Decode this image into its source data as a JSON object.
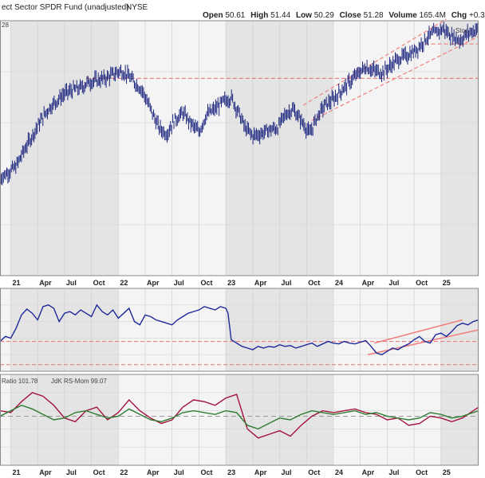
{
  "header": {
    "title": "ect Sector SPDR Fund (unadjusted)",
    "exchange": "NYSE",
    "quote": [
      {
        "label": "Open",
        "value": "50.61"
      },
      {
        "label": "High",
        "value": "51.44"
      },
      {
        "label": "Low",
        "value": "50.29"
      },
      {
        "label": "Close",
        "value": "51.28"
      },
      {
        "label": "Volume",
        "value": "165.4M"
      },
      {
        "label": "Chg",
        "value": "+0.3"
      }
    ],
    "top_left_value": "28",
    "watermark": "Stoc"
  },
  "colors": {
    "price": "#1a237e",
    "rs_line": "#1f2a9a",
    "rs_ratio": "#a3143c",
    "rs_momentum": "#2e7d32",
    "guide": "#f08080",
    "band_year": "#e4e4e4",
    "band_alt": "#f4f4f4"
  },
  "chart_data": [
    {
      "type": "line",
      "style": "ohlc-bars",
      "title": "ect Sector SPDR Fund (unadjusted)",
      "x_unit": "year-fraction",
      "x_range": [
        2020.9,
        2025.35
      ],
      "x_tick_labels": [
        "21",
        "Apr",
        "Jul",
        "Oct",
        "22",
        "Apr",
        "Jul",
        "Oct",
        "23",
        "Apr",
        "Jul",
        "Oct",
        "24",
        "Apr",
        "Jul",
        "Oct",
        "25"
      ],
      "x_tick_positions": [
        2021.0,
        2021.25,
        2021.5,
        2021.75,
        2022.0,
        2022.25,
        2022.5,
        2022.75,
        2023.0,
        2023.25,
        2023.5,
        2023.75,
        2024.0,
        2024.25,
        2024.5,
        2024.75,
        2025.0
      ],
      "y_range": [
        0,
        100
      ],
      "series": [
        {
          "x": [
            2020.9,
            2020.98,
            2021.05,
            2021.12,
            2021.2,
            2021.28,
            2021.35,
            2021.42,
            2021.5,
            2021.58,
            2021.65,
            2021.72,
            2021.8,
            2021.88,
            2021.95,
            2022.02,
            2022.08,
            2022.15,
            2022.22,
            2022.3,
            2022.38,
            2022.45,
            2022.52,
            2022.6,
            2022.68,
            2022.75,
            2022.82,
            2022.9,
            2022.98,
            2023.05,
            2023.12,
            2023.18,
            2023.25,
            2023.32,
            2023.4,
            2023.48,
            2023.55,
            2023.62,
            2023.7,
            2023.78,
            2023.85,
            2023.92,
            2024.0,
            2024.08,
            2024.15,
            2024.22,
            2024.3,
            2024.38,
            2024.45,
            2024.52,
            2024.6,
            2024.68,
            2024.75,
            2024.82,
            2024.88,
            2024.95,
            2025.02,
            2025.1,
            2025.18,
            2025.26,
            2025.35
          ],
          "y": [
            22,
            25,
            28,
            36,
            44,
            52,
            58,
            62,
            66,
            68,
            69,
            72,
            73,
            74,
            76,
            78,
            76,
            72,
            68,
            58,
            48,
            45,
            52,
            56,
            50,
            46,
            55,
            58,
            62,
            64,
            56,
            48,
            44,
            45,
            47,
            48,
            55,
            58,
            52,
            45,
            54,
            60,
            63,
            68,
            72,
            76,
            80,
            78,
            77,
            80,
            84,
            86,
            88,
            92,
            96,
            98,
            100,
            96,
            94,
            98,
            100
          ]
        }
      ]
    },
    {
      "type": "line",
      "title": "",
      "x_range": [
        2020.9,
        2025.35
      ],
      "y_range": [
        0,
        100
      ],
      "series": [
        {
          "x": [
            2020.9,
            2020.95,
            2021.0,
            2021.05,
            2021.1,
            2021.15,
            2021.2,
            2021.25,
            2021.3,
            2021.35,
            2021.4,
            2021.45,
            2021.5,
            2021.55,
            2021.6,
            2021.65,
            2021.7,
            2021.75,
            2021.8,
            2021.85,
            2021.9,
            2021.95,
            2022.0,
            2022.05,
            2022.1,
            2022.15,
            2022.2,
            2022.25,
            2022.3,
            2022.35,
            2022.4,
            2022.45,
            2022.5,
            2022.55,
            2022.6,
            2022.65,
            2022.7,
            2022.75,
            2022.8,
            2022.85,
            2022.9,
            2022.95,
            2023.0,
            2023.02,
            2023.05,
            2023.1,
            2023.15,
            2023.2,
            2023.25,
            2023.3,
            2023.35,
            2023.4,
            2023.45,
            2023.5,
            2023.55,
            2023.6,
            2023.65,
            2023.7,
            2023.75,
            2023.8,
            2023.85,
            2023.9,
            2023.95,
            2024.0,
            2024.05,
            2024.1,
            2024.15,
            2024.2,
            2024.25,
            2024.3,
            2024.35,
            2024.4,
            2024.45,
            2024.5,
            2024.55,
            2024.6,
            2024.65,
            2024.7,
            2024.75,
            2024.8,
            2024.85,
            2024.9,
            2024.95,
            2025.0,
            2025.05,
            2025.1,
            2025.15,
            2025.2,
            2025.25,
            2025.3,
            2025.35
          ],
          "y": [
            36,
            42,
            40,
            52,
            68,
            75,
            70,
            62,
            78,
            80,
            76,
            60,
            70,
            72,
            68,
            74,
            70,
            66,
            80,
            72,
            68,
            74,
            64,
            70,
            76,
            60,
            56,
            68,
            66,
            62,
            60,
            58,
            56,
            62,
            66,
            70,
            72,
            74,
            78,
            76,
            74,
            78,
            76,
            70,
            38,
            34,
            30,
            28,
            26,
            30,
            28,
            30,
            29,
            32,
            30,
            31,
            28,
            30,
            32,
            34,
            30,
            33,
            36,
            34,
            33,
            36,
            34,
            33,
            35,
            37,
            30,
            22,
            20,
            24,
            28,
            26,
            30,
            33,
            38,
            42,
            36,
            34,
            44,
            46,
            42,
            48,
            55,
            58,
            56,
            60,
            62
          ]
        }
      ]
    },
    {
      "type": "line",
      "title": "",
      "x_range": [
        2020.9,
        2025.35
      ],
      "y_range": [
        0,
        100
      ],
      "legend": [
        {
          "label": "Ratio 101.78",
          "color": "#a3143c"
        },
        {
          "label": "JdK RS-Mom 99.07",
          "color": "#2e7d32"
        }
      ],
      "series": [
        {
          "x": [
            2020.9,
            2021.0,
            2021.1,
            2021.2,
            2021.3,
            2021.4,
            2021.5,
            2021.6,
            2021.7,
            2021.8,
            2021.9,
            2022.0,
            2022.1,
            2022.2,
            2022.3,
            2022.4,
            2022.5,
            2022.6,
            2022.7,
            2022.8,
            2022.9,
            2023.0,
            2023.1,
            2023.2,
            2023.3,
            2023.4,
            2023.5,
            2023.6,
            2023.7,
            2023.8,
            2023.9,
            2024.0,
            2024.1,
            2024.2,
            2024.3,
            2024.4,
            2024.5,
            2024.6,
            2024.7,
            2024.8,
            2024.9,
            2025.0,
            2025.1,
            2025.2,
            2025.3,
            2025.35
          ],
          "y": [
            60,
            58,
            70,
            80,
            76,
            66,
            52,
            48,
            60,
            64,
            50,
            58,
            72,
            60,
            52,
            46,
            50,
            64,
            72,
            70,
            66,
            74,
            78,
            40,
            30,
            34,
            38,
            32,
            44,
            54,
            60,
            58,
            60,
            62,
            58,
            56,
            50,
            52,
            44,
            46,
            54,
            52,
            48,
            52,
            60,
            64
          ]
        },
        {
          "x": [
            2020.9,
            2021.0,
            2021.1,
            2021.2,
            2021.3,
            2021.4,
            2021.5,
            2021.6,
            2021.7,
            2021.8,
            2021.9,
            2022.0,
            2022.1,
            2022.2,
            2022.3,
            2022.4,
            2022.5,
            2022.6,
            2022.7,
            2022.8,
            2022.9,
            2023.0,
            2023.1,
            2023.2,
            2023.3,
            2023.4,
            2023.5,
            2023.6,
            2023.7,
            2023.8,
            2023.9,
            2024.0,
            2024.1,
            2024.2,
            2024.3,
            2024.4,
            2024.5,
            2024.6,
            2024.7,
            2024.8,
            2024.9,
            2025.0,
            2025.1,
            2025.2,
            2025.3,
            2025.35
          ],
          "y": [
            54,
            60,
            66,
            62,
            56,
            50,
            52,
            58,
            60,
            56,
            52,
            54,
            62,
            56,
            50,
            48,
            52,
            58,
            60,
            58,
            56,
            60,
            58,
            44,
            40,
            46,
            52,
            50,
            56,
            60,
            58,
            56,
            58,
            60,
            56,
            58,
            54,
            52,
            50,
            52,
            58,
            56,
            52,
            54,
            58,
            60
          ]
        }
      ]
    }
  ]
}
